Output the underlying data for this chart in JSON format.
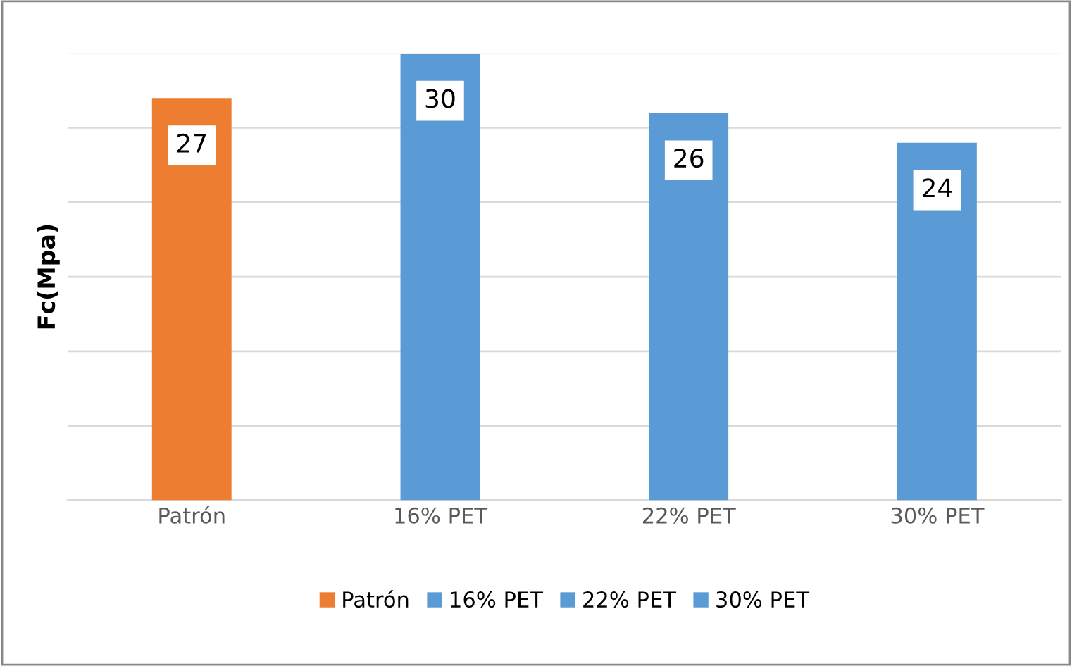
{
  "chart_data": {
    "type": "bar",
    "ylabel": "Fc(Mpa)",
    "categories": [
      "Patrón",
      "16% PET",
      "22% PET",
      "30% PET"
    ],
    "series": [
      {
        "name": "Patrón",
        "color": "#ed7d31",
        "values": [
          27,
          null,
          null,
          null
        ]
      },
      {
        "name": "16% PET",
        "color": "#5b9bd5",
        "values": [
          null,
          30,
          null,
          null
        ]
      },
      {
        "name": "22% PET",
        "color": "#5b9bd5",
        "values": [
          null,
          null,
          26,
          null
        ]
      },
      {
        "name": "30% PET",
        "color": "#5b9bd5",
        "values": [
          null,
          null,
          null,
          24
        ]
      }
    ],
    "ylim": [
      0,
      30
    ],
    "yticks": [
      {
        "value": 0,
        "label": null
      },
      {
        "value": 5,
        "label": null
      },
      {
        "value": 10,
        "label": null
      },
      {
        "value": 15,
        "label": null
      },
      {
        "value": 20,
        "label": null
      },
      {
        "value": 25,
        "label": null
      },
      {
        "value": 30,
        "label": null
      }
    ],
    "tick_labels": "x",
    "grid": "y",
    "legend": "bottom",
    "data_labels": true
  }
}
